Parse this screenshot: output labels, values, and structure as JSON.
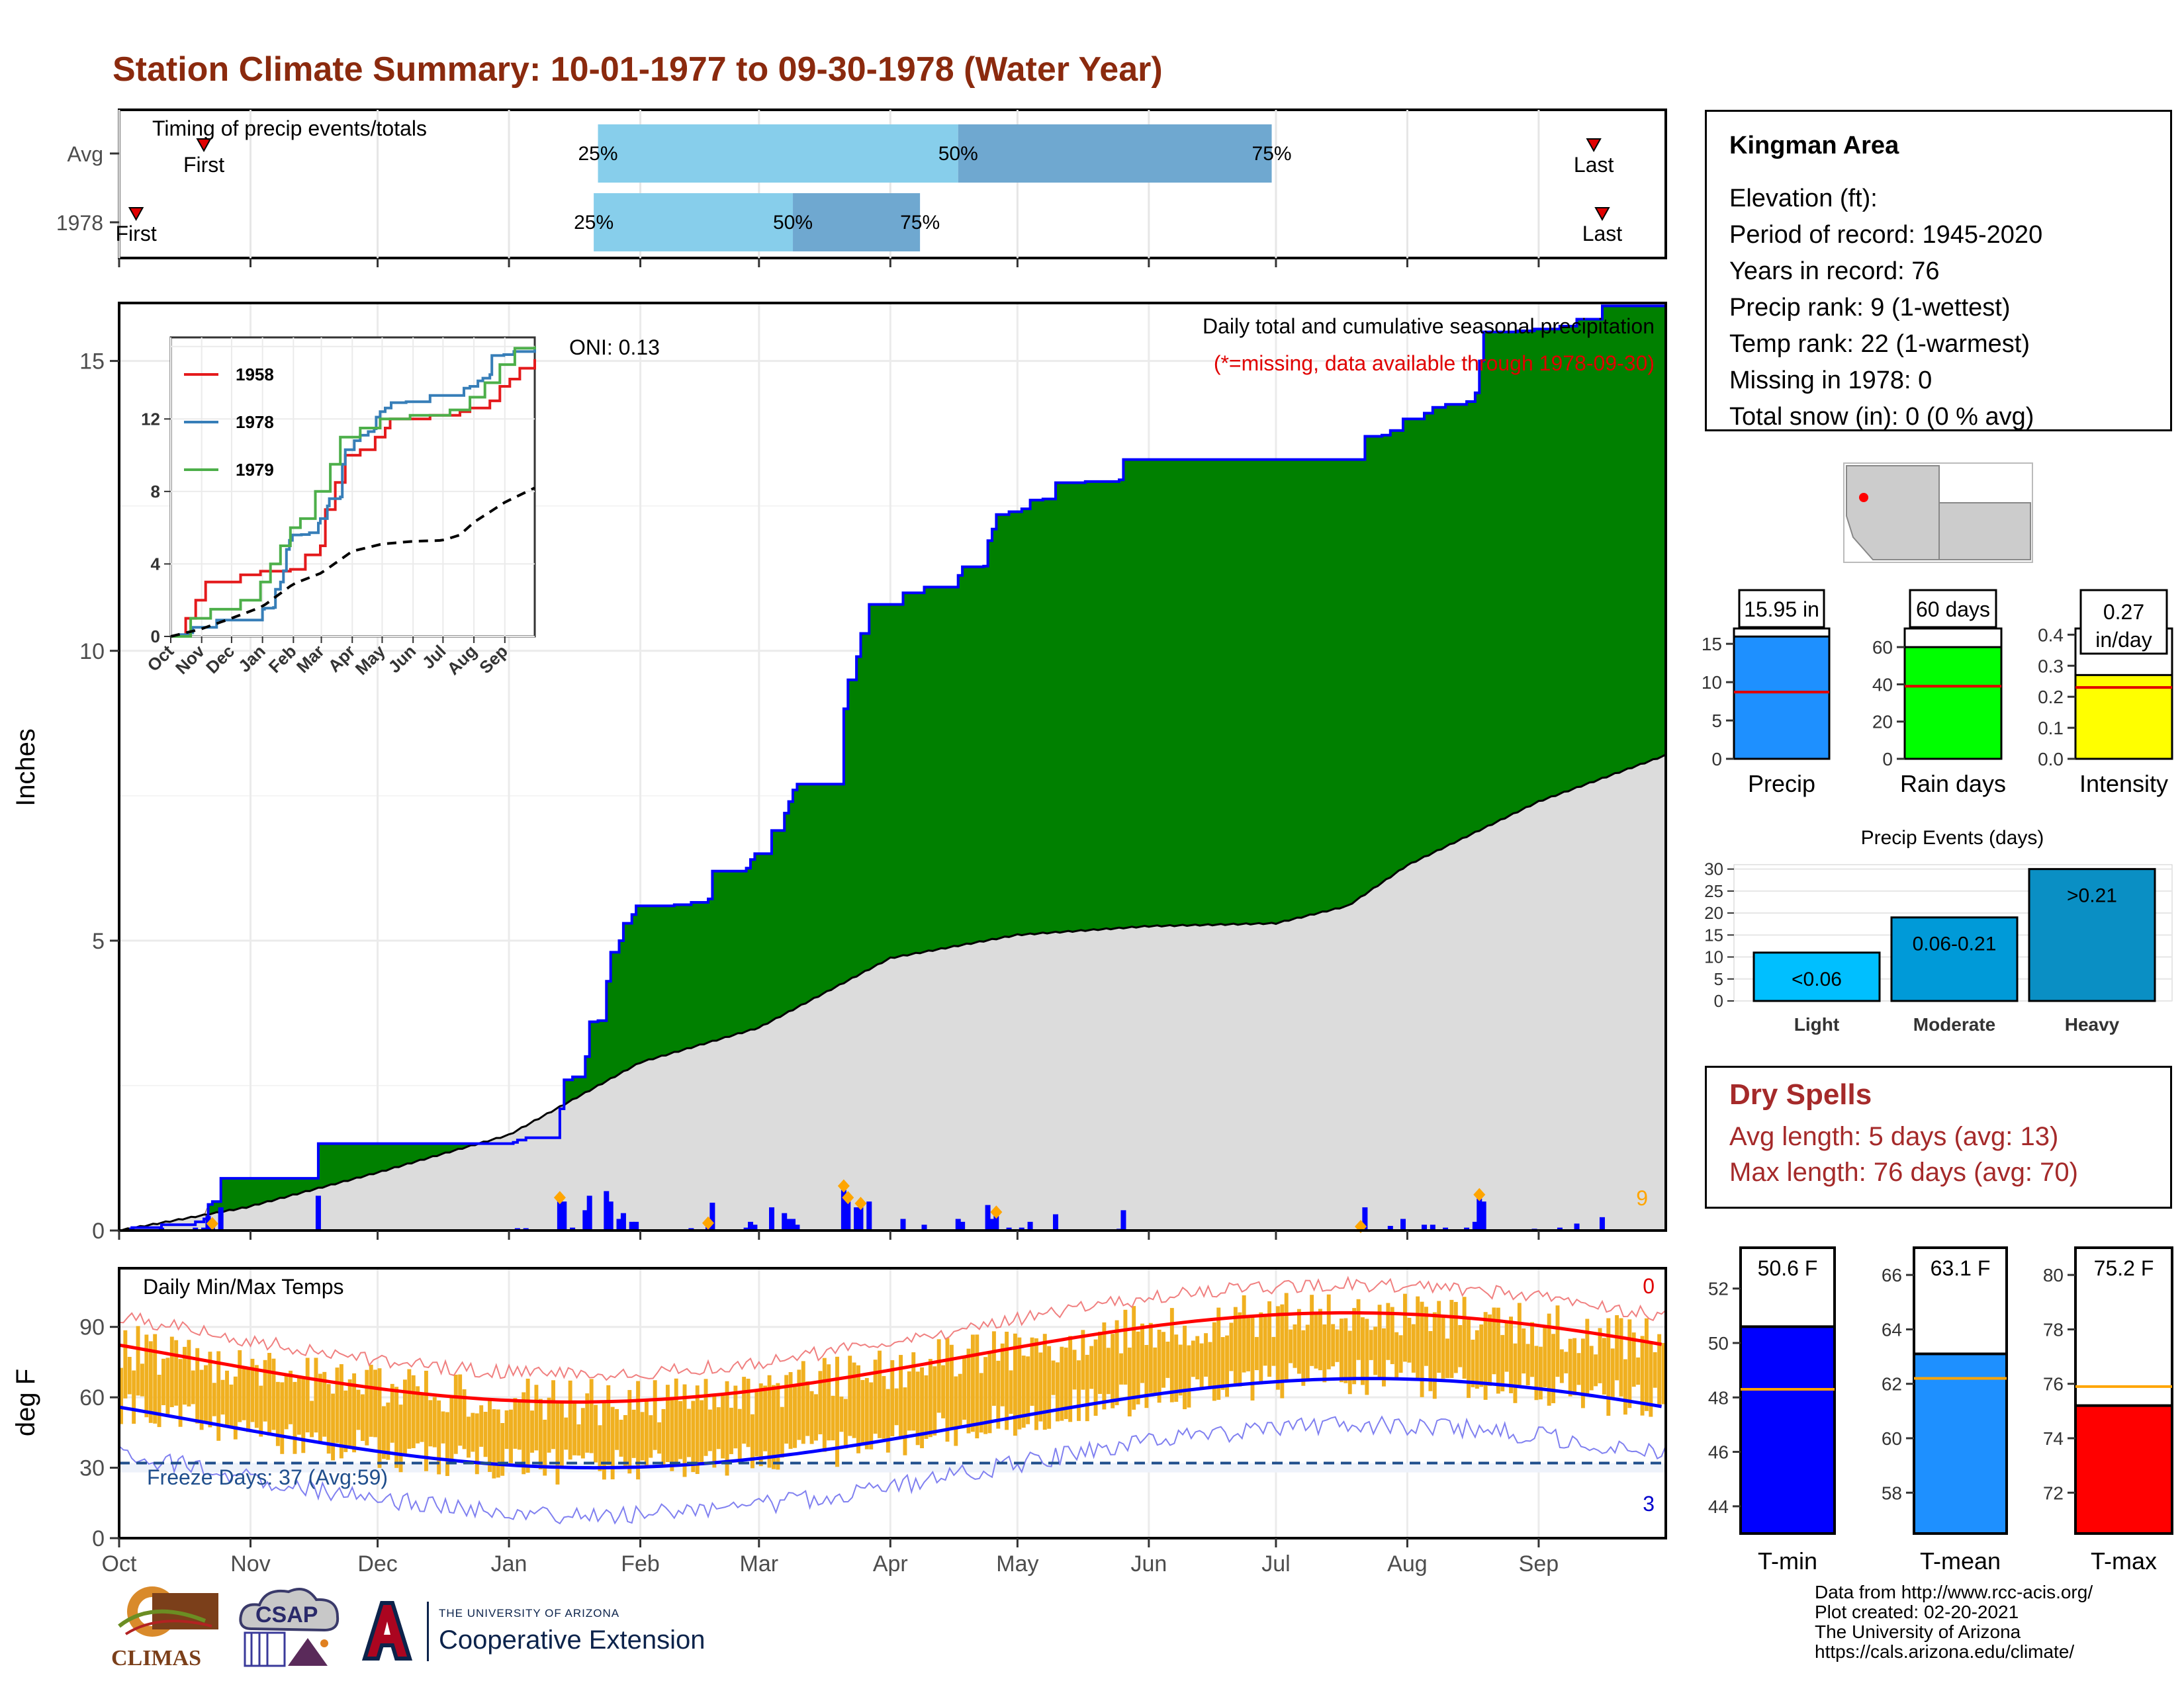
{
  "title": "Station Climate Summary: 10-01-1977 to 09-30-1978 (Water Year)",
  "colors": {
    "title": "#8b2a0e",
    "cumulative_fill": "#008000",
    "cumulative_line": "#0000ff",
    "avg_fill": "#dcdcdc",
    "deficit_fill": "#8b5a2b",
    "daily_bar": "#0000ff",
    "event_marker": "#ffa500",
    "temp_bar": "#f0b020",
    "tmax_avg": "#ff0000",
    "tmin_avg": "#0000ff",
    "timing_light": "#87ceeb",
    "timing_dark": "#6fa8d0"
  },
  "timing": {
    "label": "Timing of precip events/totals",
    "rows": [
      {
        "name": "Avg",
        "first_label": "First",
        "last_label": "Last",
        "q25_label": "25%",
        "q50_label": "50%",
        "q75_label": "75%",
        "first_day": 20,
        "q25_day": 113,
        "q50_day": 198,
        "q75_day": 272,
        "last_day": 348
      },
      {
        "name": "1978",
        "first_label": "First",
        "last_label": "Last",
        "q25_label": "25%",
        "q50_label": "50%",
        "q75_label": "75%",
        "first_day": 4,
        "q25_day": 112,
        "q50_day": 159,
        "q75_day": 189,
        "last_day": 350
      }
    ]
  },
  "precip": {
    "ylabel": "Inches",
    "header": "Daily total and cumulative seasonal precipitation",
    "missing_note": "(*=missing, data available through 1978-09-30)",
    "oni_label": "ONI: 0.13",
    "count_label": "9",
    "months": [
      "Oct",
      "Nov",
      "Dec",
      "Jan",
      "Feb",
      "Mar",
      "Apr",
      "May",
      "Jun",
      "Jul",
      "Aug",
      "Sep"
    ],
    "y_ticks": [
      "0",
      "5",
      "10",
      "15"
    ],
    "ylim": [
      0,
      16.0
    ]
  },
  "inset": {
    "legend": [
      "1958",
      "1978",
      "1979"
    ],
    "legend_colors": [
      "#e41a1c",
      "#377eb8",
      "#4daf4a"
    ],
    "y_ticks": [
      "0",
      "4",
      "8",
      "12"
    ],
    "months": [
      "Oct",
      "Nov",
      "Dec",
      "Jan",
      "Feb",
      "Mar",
      "Apr",
      "May",
      "Jun",
      "Jul",
      "Aug",
      "Sep"
    ]
  },
  "temps": {
    "label": "Daily Min/Max Temps",
    "ylabel": "deg F",
    "freeze_label": "Freeze Days: 37 (Avg:59)",
    "top_count": "0",
    "bottom_count": "3",
    "y_ticks": [
      "0",
      "30",
      "60",
      "90"
    ],
    "ylim": [
      0,
      115
    ],
    "months": [
      "Oct",
      "Nov",
      "Dec",
      "Jan",
      "Feb",
      "Mar",
      "Apr",
      "May",
      "Jun",
      "Jul",
      "Aug",
      "Sep"
    ]
  },
  "station": {
    "name": "Kingman Area",
    "elevation": "Elevation (ft):",
    "period": "Period of record: 1945-2020",
    "years": "Years in record: 76",
    "precip_rank": "Precip rank: 9 (1-wettest)",
    "temp_rank": "Temp rank: 22 (1-warmest)",
    "missing": "Missing in 1978: 0",
    "snow": "Total snow (in): 0 (0 % avg)"
  },
  "summary_bars": [
    {
      "label": "Precip",
      "value_label": "15.95 in",
      "value": 15.95,
      "avg": 8.7,
      "ylim": [
        0,
        17
      ],
      "ticks": [
        "0",
        "5",
        "10",
        "15"
      ],
      "tick_values": [
        0,
        5,
        10,
        15
      ],
      "color": "#1e90ff"
    },
    {
      "label": "Rain days",
      "value_label": "60 days",
      "value": 60,
      "avg": 39,
      "ylim": [
        0,
        70
      ],
      "ticks": [
        "0",
        "20",
        "40",
        "60"
      ],
      "tick_values": [
        0,
        20,
        40,
        60
      ],
      "color": "#00ff00"
    },
    {
      "label": "Intensity",
      "value_label": "0.27 in/day",
      "value": 0.27,
      "avg": 0.23,
      "ylim": [
        0,
        0.42
      ],
      "ticks": [
        "0.0",
        "0.1",
        "0.2",
        "0.3",
        "0.4"
      ],
      "tick_values": [
        0,
        0.1,
        0.2,
        0.3,
        0.4
      ],
      "color": "#ffff00"
    }
  ],
  "events": {
    "title": "Precip Events (days)",
    "categories": [
      "Light",
      "Moderate",
      "Heavy"
    ],
    "value_labels": [
      "<0.06",
      "0.06-0.21",
      ">0.21"
    ],
    "values": [
      11,
      19,
      30
    ],
    "ticks": [
      "0",
      "5",
      "10",
      "15",
      "20",
      "25",
      "30"
    ],
    "colors": [
      "#00bfff",
      "#009ad8",
      "#0a8fc4"
    ]
  },
  "dry_spells": {
    "title": "Dry Spells",
    "avg": "Avg length: 5 days (avg: 13)",
    "max": "Max length: 76 days (avg: 70)"
  },
  "temp_bars": [
    {
      "label": "T-min",
      "value_label": "50.6 F",
      "value": 50.6,
      "avg": 48.3,
      "ylim": [
        43,
        53.5
      ],
      "ticks": [
        "44",
        "46",
        "48",
        "50",
        "52"
      ],
      "tick_values": [
        44,
        46,
        48,
        50,
        52
      ],
      "color": "#0000ff"
    },
    {
      "label": "T-mean",
      "value_label": "63.1 F",
      "value": 63.1,
      "avg": 62.2,
      "ylim": [
        56.5,
        67
      ],
      "ticks": [
        "58",
        "60",
        "62",
        "64",
        "66"
      ],
      "tick_values": [
        58,
        60,
        62,
        64,
        66
      ],
      "color": "#1e90ff"
    },
    {
      "label": "T-max",
      "value_label": "75.2 F",
      "value": 75.2,
      "avg": 75.9,
      "ylim": [
        70.5,
        81
      ],
      "ticks": [
        "72",
        "74",
        "76",
        "78",
        "80"
      ],
      "tick_values": [
        72,
        74,
        76,
        78,
        80
      ],
      "color": "#ff0000"
    }
  ],
  "footer": {
    "line1": "Data from http://www.rcc-acis.org/",
    "line2": "Plot created: 02-20-2021",
    "line3": "The University of Arizona",
    "line4": "https://cals.arizona.edu/climate/"
  },
  "logos": {
    "climas": "CLIMAS",
    "csap": "CSAP",
    "ua_small": "THE UNIVERSITY OF ARIZONA",
    "ua_big": "Cooperative Extension"
  }
}
